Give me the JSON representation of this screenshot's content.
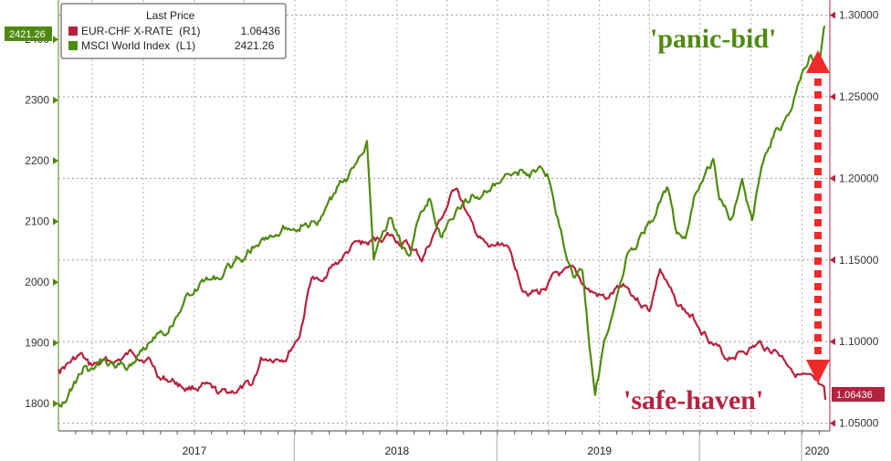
{
  "chart_data": {
    "type": "line",
    "legend": {
      "title": "Last Price",
      "placement": "top-left",
      "entries": [
        {
          "label": "EUR-CHF X-RATE  (R1)",
          "value": "1.06436",
          "color": "#b5223e"
        },
        {
          "label": "MSCI World Index  (L1)",
          "value": "2421.26",
          "color": "#4f8a10"
        }
      ]
    },
    "x_axis": {
      "type": "date",
      "range": [
        "2016-05-01",
        "2020-02-20"
      ],
      "year_labels": [
        {
          "label": "2017",
          "at": "2017-01-01"
        },
        {
          "label": "2018",
          "at": "2018-01-01"
        },
        {
          "label": "2019",
          "at": "2019-01-01"
        },
        {
          "label": "2020",
          "at": "2020-01-01"
        }
      ],
      "separators": [
        "2017-06-30",
        "2018-06-30",
        "2019-06-30",
        "2019-12-31"
      ]
    },
    "left_axis": {
      "series": "MSCI World Index",
      "ylim": [
        1755,
        2465
      ],
      "ticks": [
        1800,
        1900,
        2000,
        2100,
        2200,
        2300,
        2400
      ],
      "color": "#4f8a10"
    },
    "right_axis": {
      "series": "EUR-CHF X-RATE",
      "ylim": [
        1.0453,
        1.3093
      ],
      "ticks": [
        "1.05000",
        "1.10000",
        "1.15000",
        "1.20000",
        "1.25000",
        "1.30000"
      ],
      "color": "#b5223e"
    },
    "grid": true,
    "series": [
      {
        "name": "MSCI World Index",
        "axis": "left",
        "color": "#4f8a10",
        "last_value_tag": "2421.26",
        "points": [
          [
            "2016-05-01",
            1800
          ],
          [
            "2016-06-01",
            1835
          ],
          [
            "2016-06-15",
            1860
          ],
          [
            "2016-07-01",
            1850
          ],
          [
            "2016-07-15",
            1870
          ],
          [
            "2016-08-01",
            1865
          ],
          [
            "2016-09-01",
            1860
          ],
          [
            "2016-10-01",
            1890
          ],
          [
            "2016-11-01",
            1930
          ],
          [
            "2016-11-15",
            1925
          ],
          [
            "2016-12-15",
            1975
          ],
          [
            "2017-01-15",
            2000
          ],
          [
            "2017-02-15",
            2010
          ],
          [
            "2017-03-15",
            2030
          ],
          [
            "2017-04-15",
            2060
          ],
          [
            "2017-05-15",
            2075
          ],
          [
            "2017-06-15",
            2090
          ],
          [
            "2017-07-15",
            2105
          ],
          [
            "2017-08-15",
            2100
          ],
          [
            "2017-09-15",
            2150
          ],
          [
            "2017-10-15",
            2185
          ],
          [
            "2017-11-08",
            2240
          ],
          [
            "2017-11-20",
            2045
          ],
          [
            "2017-12-01",
            2080
          ],
          [
            "2017-12-20",
            2110
          ],
          [
            "2018-01-10",
            2060
          ],
          [
            "2018-01-26",
            2050
          ],
          [
            "2018-02-09",
            2105
          ],
          [
            "2018-03-01",
            2140
          ],
          [
            "2018-03-23",
            2075
          ],
          [
            "2018-04-15",
            2110
          ],
          [
            "2018-05-15",
            2145
          ],
          [
            "2018-06-15",
            2150
          ],
          [
            "2018-07-15",
            2165
          ],
          [
            "2018-08-15",
            2185
          ],
          [
            "2018-09-15",
            2180
          ],
          [
            "2018-10-01",
            2175
          ],
          [
            "2018-10-15",
            2110
          ],
          [
            "2018-11-01",
            2050
          ],
          [
            "2018-11-15",
            2010
          ],
          [
            "2018-12-01",
            2020
          ],
          [
            "2018-12-24",
            1805
          ],
          [
            "2019-01-10",
            1900
          ],
          [
            "2019-01-31",
            1980
          ],
          [
            "2019-02-20",
            2050
          ],
          [
            "2019-03-15",
            2075
          ],
          [
            "2019-04-15",
            2120
          ],
          [
            "2019-05-05",
            2150
          ],
          [
            "2019-05-20",
            2070
          ],
          [
            "2019-06-05",
            2060
          ],
          [
            "2019-06-20",
            2130
          ],
          [
            "2019-07-25",
            2200
          ],
          [
            "2019-08-05",
            2130
          ],
          [
            "2019-08-25",
            2100
          ],
          [
            "2019-09-15",
            2175
          ],
          [
            "2019-10-03",
            2110
          ],
          [
            "2019-10-20",
            2190
          ],
          [
            "2019-11-15",
            2255
          ],
          [
            "2019-12-10",
            2270
          ],
          [
            "2019-12-31",
            2330
          ],
          [
            "2020-01-17",
            2380
          ],
          [
            "2020-01-31",
            2350
          ],
          [
            "2020-02-12",
            2421.26
          ]
        ]
      },
      {
        "name": "EUR-CHF X-RATE",
        "axis": "right",
        "color": "#b5223e",
        "last_value_tag": "1.06436",
        "points": [
          [
            "2016-05-01",
            1.083
          ],
          [
            "2016-06-10",
            1.091
          ],
          [
            "2016-06-25",
            1.084
          ],
          [
            "2016-07-15",
            1.086
          ],
          [
            "2016-08-15",
            1.088
          ],
          [
            "2016-09-15",
            1.093
          ],
          [
            "2016-10-10",
            1.09
          ],
          [
            "2016-11-01",
            1.078
          ],
          [
            "2016-11-25",
            1.076
          ],
          [
            "2016-12-15",
            1.072
          ],
          [
            "2017-01-15",
            1.073
          ],
          [
            "2017-02-15",
            1.066
          ],
          [
            "2017-03-15",
            1.07
          ],
          [
            "2017-04-15",
            1.072
          ],
          [
            "2017-05-01",
            1.088
          ],
          [
            "2017-05-15",
            1.09
          ],
          [
            "2017-06-15",
            1.092
          ],
          [
            "2017-07-10",
            1.105
          ],
          [
            "2017-07-31",
            1.14
          ],
          [
            "2017-08-15",
            1.135
          ],
          [
            "2017-09-01",
            1.145
          ],
          [
            "2017-09-15",
            1.148
          ],
          [
            "2017-10-15",
            1.158
          ],
          [
            "2017-11-15",
            1.16
          ],
          [
            "2017-12-15",
            1.165
          ],
          [
            "2018-01-15",
            1.16
          ],
          [
            "2018-02-15",
            1.15
          ],
          [
            "2018-03-15",
            1.17
          ],
          [
            "2018-04-19",
            1.195
          ],
          [
            "2018-05-15",
            1.17
          ],
          [
            "2018-06-15",
            1.155
          ],
          [
            "2018-07-15",
            1.16
          ],
          [
            "2018-08-15",
            1.135
          ],
          [
            "2018-09-15",
            1.13
          ],
          [
            "2018-10-15",
            1.14
          ],
          [
            "2018-11-15",
            1.14
          ],
          [
            "2018-12-15",
            1.13
          ],
          [
            "2019-01-15",
            1.125
          ],
          [
            "2019-02-15",
            1.135
          ],
          [
            "2019-03-15",
            1.125
          ],
          [
            "2019-04-01",
            1.12
          ],
          [
            "2019-04-20",
            1.145
          ],
          [
            "2019-05-15",
            1.125
          ],
          [
            "2019-06-15",
            1.115
          ],
          [
            "2019-07-15",
            1.105
          ],
          [
            "2019-08-15",
            1.09
          ],
          [
            "2019-09-15",
            1.095
          ],
          [
            "2019-10-15",
            1.098
          ],
          [
            "2019-11-15",
            1.095
          ],
          [
            "2019-12-15",
            1.085
          ],
          [
            "2020-01-15",
            1.075
          ],
          [
            "2020-01-31",
            1.07
          ],
          [
            "2020-02-12",
            1.06436
          ]
        ]
      }
    ],
    "annotations": [
      {
        "text": "'panic-bid'",
        "color": "#4f8a10"
      },
      {
        "text": "'safe-haven'",
        "color": "#b5223e"
      }
    ]
  }
}
